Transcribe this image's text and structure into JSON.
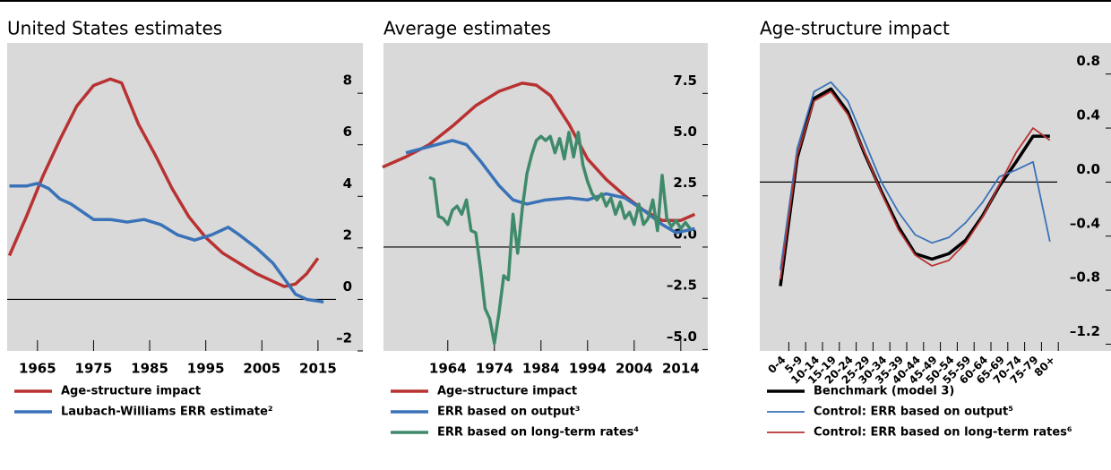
{
  "chart_data": [
    {
      "type": "line",
      "title": "United States estimates",
      "xlim": [
        1959.6,
        2023
      ],
      "xticks": [
        1965,
        1975,
        1985,
        1995,
        2005,
        2015
      ],
      "ylim": [
        -2,
        9.95
      ],
      "yticks": [
        8,
        6,
        4,
        2,
        0,
        {
          "value": -2,
          "label": "–2"
        }
      ],
      "series": [
        {
          "name": "Age-structure impact",
          "color": "#b83232",
          "x": [
            1960,
            1963,
            1966,
            1969,
            1972,
            1975,
            1978,
            1980,
            1983,
            1986,
            1989,
            1992,
            1995,
            1998,
            2001,
            2004,
            2007,
            2009,
            2011,
            2013,
            2015
          ],
          "values": [
            1.7,
            3.2,
            4.8,
            6.2,
            7.5,
            8.3,
            8.55,
            8.4,
            6.8,
            5.6,
            4.3,
            3.2,
            2.4,
            1.8,
            1.4,
            1.0,
            0.7,
            0.5,
            0.6,
            1.0,
            1.6
          ]
        },
        {
          "name": "Laubach-Williams ERR estimate²",
          "color": "#3a72b8",
          "x": [
            1960,
            1963,
            1965,
            1967,
            1969,
            1971,
            1973,
            1975,
            1978,
            1981,
            1984,
            1987,
            1990,
            1993,
            1996,
            1999,
            2001,
            2004,
            2007,
            2009,
            2011,
            2013,
            2016
          ],
          "values": [
            4.4,
            4.4,
            4.5,
            4.3,
            3.9,
            3.7,
            3.4,
            3.1,
            3.1,
            3.0,
            3.1,
            2.9,
            2.5,
            2.3,
            2.5,
            2.8,
            2.5,
            2.0,
            1.4,
            0.8,
            0.2,
            0.0,
            -0.1
          ]
        }
      ]
    },
    {
      "type": "line",
      "title": "Average estimates",
      "xlim": [
        1950.2,
        2019.8
      ],
      "xticks": [
        1964,
        1974,
        1984,
        1994,
        2004,
        2014
      ],
      "ylim": [
        -5.07,
        9.96
      ],
      "yticks": [
        7.5,
        {
          "value": 5,
          "label": "5.0"
        },
        2.5,
        {
          "value": 0,
          "label": "0.0"
        },
        {
          "value": -2.5,
          "label": "–2.5"
        },
        {
          "value": -5,
          "label": "–5.0"
        }
      ],
      "series": [
        {
          "name": "Age-structure impact",
          "color": "#b83232",
          "x": [
            1950,
            1955,
            1960,
            1965,
            1970,
            1975,
            1980,
            1983,
            1986,
            1990,
            1994,
            1998,
            2002,
            2006,
            2010,
            2014,
            2017
          ],
          "values": [
            3.9,
            4.4,
            5.0,
            5.9,
            6.9,
            7.6,
            8.0,
            7.9,
            7.4,
            6.0,
            4.3,
            3.3,
            2.5,
            1.8,
            1.3,
            1.3,
            1.6
          ]
        },
        {
          "name": "ERR based on output³",
          "color": "#3a72b8",
          "x": [
            1955,
            1960,
            1965,
            1968,
            1971,
            1975,
            1978,
            1981,
            1985,
            1990,
            1994,
            1998,
            2002,
            2006,
            2010,
            2013,
            2015,
            2017
          ],
          "values": [
            4.6,
            4.9,
            5.2,
            5.0,
            4.2,
            3.0,
            2.3,
            2.1,
            2.3,
            2.4,
            2.3,
            2.6,
            2.4,
            1.8,
            1.1,
            0.7,
            0.8,
            0.9
          ]
        },
        {
          "name": "ERR based on long-term rates⁴",
          "color": "#3f8a6a",
          "x": [
            1960,
            1961,
            1962,
            1963,
            1964,
            1965,
            1966,
            1967,
            1968,
            1969,
            1970,
            1971,
            1972,
            1973,
            1974,
            1975,
            1976,
            1977,
            1978,
            1979,
            1980,
            1981,
            1982,
            1983,
            1984,
            1985,
            1986,
            1987,
            1988,
            1989,
            1990,
            1991,
            1992,
            1993,
            1994,
            1995,
            1996,
            1997,
            1998,
            1999,
            2000,
            2001,
            2002,
            2003,
            2004,
            2005,
            2006,
            2007,
            2008,
            2009,
            2010,
            2011,
            2012,
            2013,
            2014,
            2015,
            2016
          ],
          "values": [
            3.4,
            3.3,
            1.5,
            1.4,
            1.1,
            1.8,
            2.0,
            1.6,
            2.3,
            0.8,
            0.7,
            -1.0,
            -3.0,
            -3.5,
            -4.7,
            -3.2,
            -1.4,
            -1.6,
            1.6,
            -0.3,
            1.9,
            3.6,
            4.5,
            5.2,
            5.4,
            5.2,
            5.4,
            4.6,
            5.3,
            4.3,
            5.6,
            4.4,
            5.6,
            4.0,
            3.2,
            2.6,
            2.3,
            2.6,
            2.0,
            2.4,
            1.6,
            2.2,
            1.4,
            1.7,
            1.1,
            2.1,
            1.1,
            1.4,
            2.3,
            0.8,
            3.5,
            1.4,
            1.0,
            1.3,
            0.9,
            1.2,
            0.9
          ]
        }
      ]
    },
    {
      "type": "line",
      "title": "Age-structure impact",
      "categories": [
        "0-4",
        "5-9",
        "10-14",
        "15-19",
        "20-24",
        "25-29",
        "30-34",
        "35-39",
        "40-44",
        "45-49",
        "50-54",
        "55-59",
        "60-64",
        "65-69",
        "70-74",
        "75-79",
        "80+"
      ],
      "ylim": [
        -1.25,
        1.03
      ],
      "yticks": [
        0.8,
        0.4,
        {
          "value": 0,
          "label": "0.0"
        },
        {
          "value": -0.4,
          "label": "–0.4"
        },
        {
          "value": -0.8,
          "label": "–0.8"
        },
        {
          "value": -1.2,
          "label": "–1.2"
        }
      ],
      "series": [
        {
          "name": "Benchmark (model 3)",
          "color": "#000000",
          "values": [
            -0.77,
            0.18,
            0.62,
            0.69,
            0.52,
            0.21,
            -0.07,
            -0.33,
            -0.53,
            -0.57,
            -0.53,
            -0.43,
            -0.25,
            -0.03,
            0.15,
            0.34,
            0.34
          ]
        },
        {
          "name": "Control: ERR based on output⁵",
          "color": "#3a72b8",
          "values": [
            -0.65,
            0.25,
            0.67,
            0.74,
            0.6,
            0.3,
            0.0,
            -0.22,
            -0.39,
            -0.45,
            -0.41,
            -0.3,
            -0.15,
            0.04,
            0.09,
            0.15,
            -0.44
          ]
        },
        {
          "name": "Control: ERR based on long-term rates⁶",
          "color": "#b83232",
          "values": [
            -0.72,
            0.2,
            0.6,
            0.67,
            0.5,
            0.22,
            -0.08,
            -0.35,
            -0.54,
            -0.62,
            -0.58,
            -0.45,
            -0.26,
            -0.02,
            0.22,
            0.4,
            0.31
          ]
        }
      ]
    }
  ]
}
